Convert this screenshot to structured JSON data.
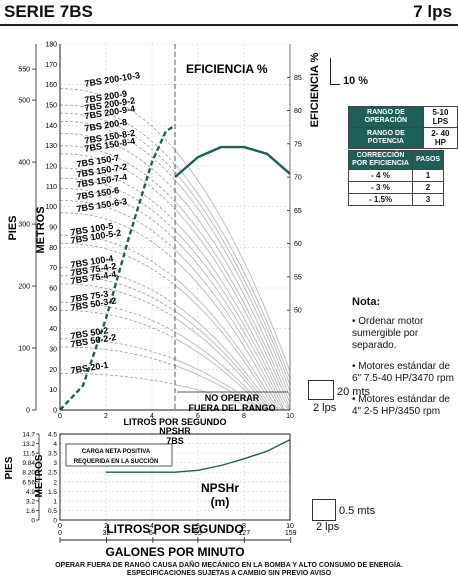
{
  "header": {
    "series": "SERIE 7BS",
    "flow": "7 lps"
  },
  "labels": {
    "eficiencia_pct": "EFICIENCIA %",
    "eficiencia": "EFICIENCIA %",
    "pies": "PIES",
    "metros": "METROS",
    "litros_por_segundo": "LITROS POR SEGUNDO",
    "galones_por_minuto": "GALONES POR MINUTO",
    "no_operar": "NO OPERAR",
    "fuera_rango": "FUERA DEL RANGO",
    "npshr_title": "NPSHR",
    "npshr_model": "7BS",
    "carga_neta_1": "CARGA NETA POSITIVA",
    "carga_neta_2": "REQUERIDA EN LA SUCCIÓN",
    "npshr": "NPSHr",
    "npshr_unit": "(m)"
  },
  "scales": {
    "eff_10": "10 %",
    "mts_20": "20 mts",
    "lps_2": "2 lps",
    "mts_05": "0.5 mts"
  },
  "table1": {
    "rows": [
      {
        "label": "RANGO DE OPERACIÓN",
        "value": "5-10 LPS"
      },
      {
        "label": "RANGO DE POTENCIA",
        "value": "2- 40 HP"
      }
    ]
  },
  "table2": {
    "header_left": "CORRECCIÓN POR EFICIENCIA",
    "header_right": "PASOS",
    "rows": [
      {
        "pct": "- 4 %",
        "steps": "1"
      },
      {
        "pct": "- 3 %",
        "steps": "2"
      },
      {
        "pct": "- 1.5%",
        "steps": "3"
      }
    ]
  },
  "notes": {
    "title": "Nota:",
    "items": [
      "• Ordenar motor sumergible por separado.",
      "• Motores estándar de 6\" 7.5-40 HP/3470 rpm",
      "• Motores estándar de 4\" 2-5 HP/3450 rpm"
    ]
  },
  "footer": {
    "line1": "OPERAR FUERA DE RANGO CAUSA DAÑO MECÁNICO EN LA BOMBA Y ALTO CONSUMO DE ENERGÍA.",
    "line2": "ESPECIFICACIONES SUJETAS A CAMBIO SIN PREVIO AVISO"
  },
  "colors": {
    "teal": "#1f5f5a",
    "curve": "#b8b8b8",
    "grid": "#cfcfcf",
    "dashed": "#9a9a9a"
  },
  "chart_data": [
    {
      "type": "line",
      "title": "",
      "xlabel": "LITROS POR SEGUNDO",
      "ylabel": "METROS",
      "xlim": [
        0,
        10
      ],
      "ylim": [
        0,
        180
      ],
      "x_ticks": [
        0,
        2,
        4,
        6,
        8,
        10
      ],
      "y_ticks_metros": [
        0,
        10,
        20,
        30,
        40,
        50,
        60,
        70,
        80,
        90,
        100,
        110,
        120,
        130,
        140,
        150,
        160,
        170,
        180
      ],
      "y_ticks_pies": [
        0,
        100,
        200,
        300,
        400,
        500,
        550
      ],
      "eff_ticks": [
        50,
        55,
        60,
        65,
        70,
        75,
        80,
        85
      ],
      "eff_axis": {
        "label": "EFICIENCIA %",
        "ylim": [
          35,
          90
        ]
      },
      "operating_limit_lps": 5,
      "models": [
        {
          "name": "7BS 200-10-3",
          "shutoff_m": 158
        },
        {
          "name": "7BS 200-9",
          "shutoff_m": 150
        },
        {
          "name": "7BS 200-9-2",
          "shutoff_m": 146
        },
        {
          "name": "7BS 200-9-4",
          "shutoff_m": 142
        },
        {
          "name": "7BS 200-8",
          "shutoff_m": 136
        },
        {
          "name": "7BS 150-8-2",
          "shutoff_m": 130
        },
        {
          "name": "7BS 150-8-4",
          "shutoff_m": 126
        },
        {
          "name": "7BS 150-7",
          "shutoff_m": 119
        },
        {
          "name": "7BS 150-7-2",
          "shutoff_m": 114
        },
        {
          "name": "7BS 150-7-4",
          "shutoff_m": 109
        },
        {
          "name": "7BS 150-6",
          "shutoff_m": 103
        },
        {
          "name": "7BS 150-6-3",
          "shutoff_m": 97
        },
        {
          "name": "7BS 100-5",
          "shutoff_m": 86
        },
        {
          "name": "7BS 100-5-2",
          "shutoff_m": 82
        },
        {
          "name": "7BS 100-4",
          "shutoff_m": 70
        },
        {
          "name": "7BS 75-4-2",
          "shutoff_m": 66
        },
        {
          "name": "7BS 75-4-4",
          "shutoff_m": 62
        },
        {
          "name": "7BS 75-3",
          "shutoff_m": 53
        },
        {
          "name": "7BS 50-3-2",
          "shutoff_m": 49
        },
        {
          "name": "7BS 50-2",
          "shutoff_m": 35
        },
        {
          "name": "7BS 50-2-2",
          "shutoff_m": 31
        },
        {
          "name": "7BS 20-1",
          "shutoff_m": 18
        }
      ],
      "efficiency_curve": {
        "x": [
          5,
          6,
          7,
          8,
          9,
          10
        ],
        "y": [
          70,
          73,
          74.5,
          74.5,
          73.5,
          70.5
        ]
      },
      "bep_curve": {
        "x": [
          0,
          1,
          2,
          3,
          4,
          4.6,
          5
        ],
        "y": [
          0,
          12,
          45,
          85,
          122,
          137,
          140
        ]
      }
    },
    {
      "type": "line",
      "title": "NPSHR 7BS",
      "xlabel": "LITROS POR SEGUNDO",
      "ylabel": "METROS",
      "xlim": [
        0,
        10
      ],
      "ylim": [
        0,
        4.5
      ],
      "x_ticks": [
        0,
        2,
        4,
        6,
        8,
        10
      ],
      "gpm_ticks": [
        0,
        32,
        64,
        95,
        127,
        159
      ],
      "y_ticks_metros": [
        0,
        0.5,
        1,
        1.5,
        2,
        2.5,
        3,
        3.5,
        4,
        4.5
      ],
      "y_ticks_pies": [
        "0",
        "1.6",
        "3.2",
        "4.9",
        "6.56",
        "8.20",
        "9.84",
        "11.5",
        "13.2",
        "14.7"
      ],
      "npsh_curve": {
        "x": [
          2,
          4,
          5,
          6,
          7,
          8,
          9,
          10
        ],
        "y": [
          2.5,
          2.5,
          2.5,
          2.6,
          2.85,
          3.2,
          3.6,
          4.2
        ]
      }
    }
  ]
}
